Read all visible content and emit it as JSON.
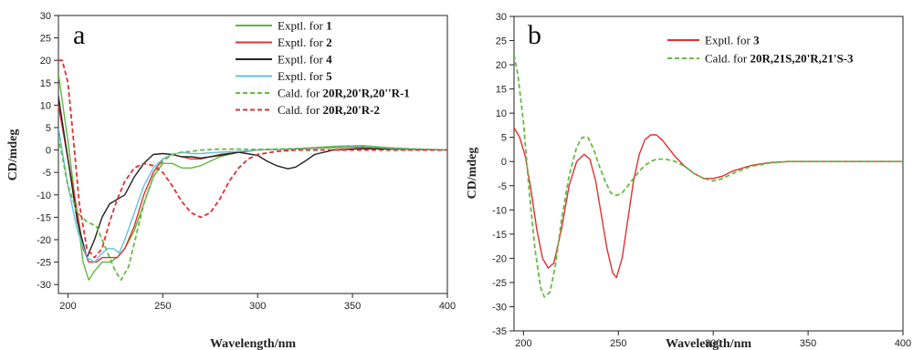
{
  "chart_data": [
    {
      "type": "line",
      "panel_label": "a",
      "xlabel": "Wavelength/nm",
      "ylabel": "CD/mdeg",
      "xlim": [
        195,
        400
      ],
      "ylim": [
        -32,
        30
      ],
      "xticks": [
        200,
        250,
        300,
        350,
        400
      ],
      "yticks": [
        30,
        25,
        20,
        15,
        10,
        5,
        0,
        -5,
        -10,
        -15,
        -20,
        -25,
        -30
      ],
      "grid": false,
      "legend_position": "top-right",
      "series": [
        {
          "name": "Exptl. for 1",
          "label_plain": "Exptl. for ",
          "label_bold": "1",
          "color": "#5cb83c",
          "dash": "solid",
          "x": [
            195,
            200,
            205,
            208,
            211,
            214,
            218,
            222,
            226,
            230,
            235,
            240,
            245,
            250,
            255,
            260,
            265,
            270,
            275,
            280,
            290,
            300,
            320,
            340,
            355,
            370,
            385,
            400
          ],
          "y": [
            17,
            2,
            -15,
            -25,
            -29,
            -27,
            -25,
            -25,
            -24,
            -22,
            -18,
            -12,
            -6,
            -3,
            -3,
            -4,
            -4,
            -3.5,
            -2.5,
            -1.5,
            -0.5,
            0,
            0.3,
            0.8,
            1,
            0.5,
            0.2,
            0
          ]
        },
        {
          "name": "Exptl. for 2",
          "label_plain": "Exptl. for ",
          "label_bold": "2",
          "color": "#e03030",
          "dash": "solid",
          "x": [
            195,
            200,
            205,
            208,
            211,
            215,
            218,
            222,
            226,
            230,
            235,
            240,
            245,
            250,
            255,
            260,
            265,
            270,
            275,
            280,
            290,
            300,
            320,
            340,
            355,
            370,
            385,
            400
          ],
          "y": [
            10,
            -2,
            -14,
            -22,
            -25,
            -25,
            -24,
            -24,
            -24,
            -22,
            -17,
            -10,
            -5,
            -2,
            -1,
            -1.5,
            -2,
            -2,
            -1.5,
            -1,
            -0.5,
            0,
            0.2,
            0.5,
            0.6,
            0.3,
            0.1,
            0
          ]
        },
        {
          "name": "Exptl. for 4",
          "label_plain": "Exptl. for ",
          "label_bold": "4",
          "color": "#222222",
          "dash": "solid",
          "x": [
            195,
            200,
            205,
            210,
            214,
            218,
            222,
            226,
            230,
            235,
            240,
            245,
            250,
            255,
            260,
            265,
            270,
            275,
            280,
            290,
            300,
            305,
            310,
            316,
            320,
            325,
            330,
            340,
            355,
            370,
            385,
            400
          ],
          "y": [
            12,
            -2,
            -16,
            -24,
            -20,
            -15,
            -12,
            -11,
            -10,
            -6,
            -3,
            -1,
            -0.8,
            -1,
            -1.5,
            -1.5,
            -1.8,
            -1.5,
            -1.2,
            -0.5,
            -1.2,
            -2.5,
            -3.5,
            -4.2,
            -3.8,
            -2.5,
            -1,
            0,
            0.3,
            0.2,
            0.1,
            0
          ]
        },
        {
          "name": "Exptl. for 5",
          "label_plain": "Exptl. for ",
          "label_bold": "5",
          "color": "#63c2e0",
          "dash": "solid",
          "x": [
            195,
            200,
            205,
            210,
            214,
            218,
            221,
            224,
            227,
            230,
            235,
            240,
            245,
            250,
            255,
            260,
            265,
            270,
            280,
            290,
            300,
            320,
            340,
            355,
            370,
            385,
            400
          ],
          "y": [
            5,
            -8,
            -18,
            -24,
            -25,
            -23,
            -22,
            -22,
            -23,
            -20,
            -14,
            -8,
            -4,
            -2,
            -1,
            -0.5,
            -0.8,
            -0.8,
            -0.5,
            -0.3,
            0,
            0.3,
            0.6,
            0.8,
            0.4,
            0.2,
            0
          ]
        },
        {
          "name": "Cald. for 20R,20'R,20''R-1",
          "label_plain": "Cald. for ",
          "label_bold": "20R,20'R,20''R-1",
          "color": "#66bb44",
          "dash": "dashed",
          "x": [
            195,
            200,
            205,
            210,
            215,
            220,
            225,
            228,
            232,
            236,
            240,
            245,
            250,
            255,
            260,
            265,
            270,
            275,
            280,
            290,
            300,
            320,
            340,
            355,
            370,
            385,
            400
          ],
          "y": [
            3,
            -8,
            -14,
            -16,
            -17,
            -22,
            -27,
            -29,
            -26,
            -19,
            -12,
            -6,
            -2.5,
            -1,
            -0.5,
            -0.3,
            0,
            0.1,
            0.2,
            0.2,
            0.1,
            0.3,
            0.6,
            0.8,
            0.4,
            0.2,
            0
          ]
        },
        {
          "name": "Cald. for 20R,20'R-2",
          "label_plain": "Cald. for ",
          "label_bold": "20R,20'R-2",
          "color": "#e03030",
          "dash": "dashed",
          "x": [
            195,
            197,
            200,
            203,
            206,
            210,
            214,
            218,
            222,
            226,
            230,
            235,
            240,
            245,
            250,
            255,
            260,
            265,
            270,
            275,
            280,
            285,
            290,
            295,
            300,
            310,
            320,
            340,
            360,
            380,
            400
          ],
          "y": [
            20,
            20,
            15,
            2,
            -12,
            -22,
            -24,
            -22,
            -16,
            -11,
            -7,
            -4,
            -3,
            -3.5,
            -5,
            -8,
            -11.5,
            -14,
            -15,
            -14,
            -11,
            -7,
            -4,
            -2,
            -1,
            -0.3,
            0,
            0,
            0,
            0,
            0
          ]
        }
      ]
    },
    {
      "type": "line",
      "panel_label": "b",
      "xlabel": "Wavelength/nm",
      "ylabel": "CD/mdeg",
      "xlim": [
        195,
        400
      ],
      "ylim": [
        -35,
        30
      ],
      "xticks": [
        200,
        250,
        300,
        350,
        400
      ],
      "yticks": [
        30,
        25,
        20,
        15,
        10,
        5,
        0,
        -5,
        -10,
        -15,
        -20,
        -25,
        -30,
        -35
      ],
      "grid": false,
      "legend_position": "top-right",
      "series": [
        {
          "name": "Exptl. for 3",
          "label_plain": "Exptl. for ",
          "label_bold": "3",
          "color": "#e03030",
          "dash": "solid",
          "x": [
            195,
            198,
            201,
            204,
            207,
            210,
            213,
            216,
            220,
            224,
            228,
            232,
            235,
            238,
            241,
            244,
            247,
            249,
            252,
            255,
            258,
            261,
            264,
            267,
            270,
            273,
            276,
            280,
            285,
            290,
            295,
            300,
            305,
            310,
            320,
            330,
            340,
            360,
            380,
            400
          ],
          "y": [
            7,
            5,
            1,
            -6,
            -14,
            -20,
            -22,
            -21,
            -14,
            -5,
            0,
            1.5,
            0.5,
            -4,
            -11,
            -18,
            -23,
            -24,
            -20,
            -12,
            -4,
            1.5,
            4.5,
            5.5,
            5.5,
            4.5,
            3,
            1,
            -1,
            -2.5,
            -3.5,
            -3.5,
            -3,
            -2,
            -0.8,
            -0.2,
            0,
            0,
            0,
            0
          ]
        },
        {
          "name": "Cald. for 20R,21S,20'R,21'S-3",
          "label_plain": "Cald. for ",
          "label_bold": "20R,21S,20'R,21'S-3",
          "color": "#66bb44",
          "dash": "dashed",
          "x": [
            195,
            197,
            200,
            203,
            206,
            209,
            211,
            214,
            217,
            220,
            224,
            228,
            231,
            234,
            237,
            240,
            243,
            246,
            249,
            252,
            255,
            258,
            261,
            264,
            267,
            270,
            275,
            280,
            285,
            290,
            295,
            300,
            305,
            310,
            320,
            330,
            340,
            360,
            380,
            400
          ],
          "y": [
            22,
            18,
            8,
            -6,
            -18,
            -26,
            -28,
            -27,
            -21,
            -12,
            -3,
            3,
            5,
            5,
            2.5,
            -1,
            -4,
            -6.5,
            -7,
            -6.5,
            -5,
            -3.5,
            -2,
            -0.8,
            0,
            0.5,
            0.5,
            0,
            -1,
            -2.5,
            -3.5,
            -4,
            -3.5,
            -2.5,
            -1,
            -0.3,
            0,
            0,
            0,
            0
          ]
        }
      ]
    }
  ]
}
